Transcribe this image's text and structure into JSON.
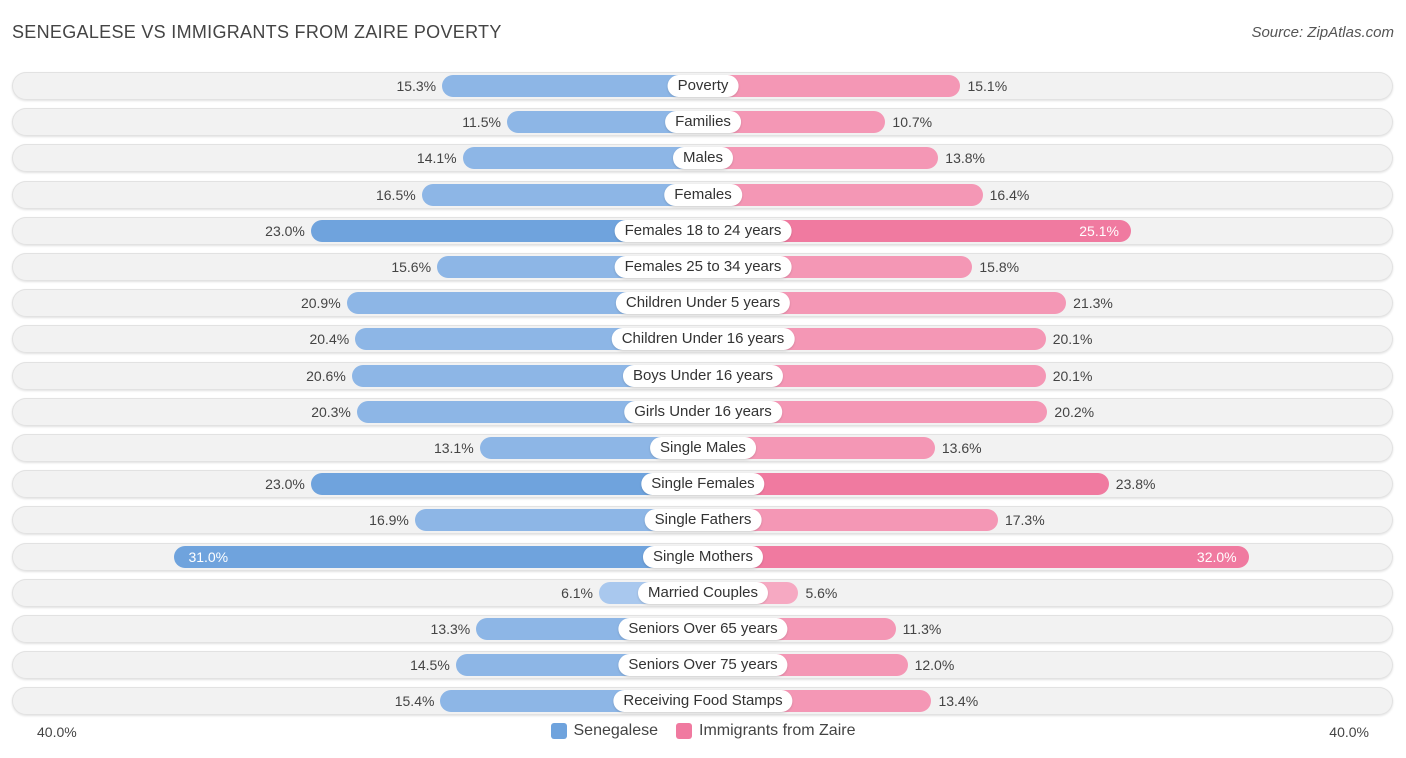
{
  "header": {
    "title": "SENEGALESE VS IMMIGRANTS FROM ZAIRE POVERTY",
    "source": "Source: ZipAtlas.com"
  },
  "colors": {
    "left": "#6fa3dd",
    "left_light": "#a9c8ee",
    "right": "#f07aa0",
    "right_light": "#f6a9c2"
  },
  "legend": {
    "left_label": "Senegalese",
    "right_label": "Immigrants from Zaire"
  },
  "axis": {
    "left_label": "40.0%",
    "right_label": "40.0%"
  },
  "chart_data": {
    "type": "bar",
    "orientation": "diverging-horizontal",
    "title": "SENEGALESE VS IMMIGRANTS FROM ZAIRE POVERTY",
    "xlim": [
      0,
      40
    ],
    "unit": "%",
    "categories": [
      "Poverty",
      "Families",
      "Males",
      "Females",
      "Females 18 to 24 years",
      "Females 25 to 34 years",
      "Children Under 5 years",
      "Children Under 16 years",
      "Boys Under 16 years",
      "Girls Under 16 years",
      "Single Males",
      "Single Females",
      "Single Fathers",
      "Single Mothers",
      "Married Couples",
      "Seniors Over 65 years",
      "Seniors Over 75 years",
      "Receiving Food Stamps"
    ],
    "series": [
      {
        "name": "Senegalese",
        "values": [
          15.3,
          11.5,
          14.1,
          16.5,
          23.0,
          15.6,
          20.9,
          20.4,
          20.6,
          20.3,
          13.1,
          23.0,
          16.9,
          31.0,
          6.1,
          13.3,
          14.5,
          15.4
        ],
        "labels": [
          "15.3%",
          "11.5%",
          "14.1%",
          "16.5%",
          "23.0%",
          "15.6%",
          "20.9%",
          "20.4%",
          "20.6%",
          "20.3%",
          "13.1%",
          "23.0%",
          "16.9%",
          "31.0%",
          "6.1%",
          "13.3%",
          "14.5%",
          "15.4%"
        ]
      },
      {
        "name": "Immigrants from Zaire",
        "values": [
          15.1,
          10.7,
          13.8,
          16.4,
          25.1,
          15.8,
          21.3,
          20.1,
          20.1,
          20.2,
          13.6,
          23.8,
          17.3,
          32.0,
          5.6,
          11.3,
          12.0,
          13.4
        ],
        "labels": [
          "15.1%",
          "10.7%",
          "13.8%",
          "16.4%",
          "25.1%",
          "15.8%",
          "21.3%",
          "20.1%",
          "20.1%",
          "20.2%",
          "13.6%",
          "23.8%",
          "17.3%",
          "32.0%",
          "5.6%",
          "11.3%",
          "12.0%",
          "13.4%"
        ]
      }
    ]
  }
}
